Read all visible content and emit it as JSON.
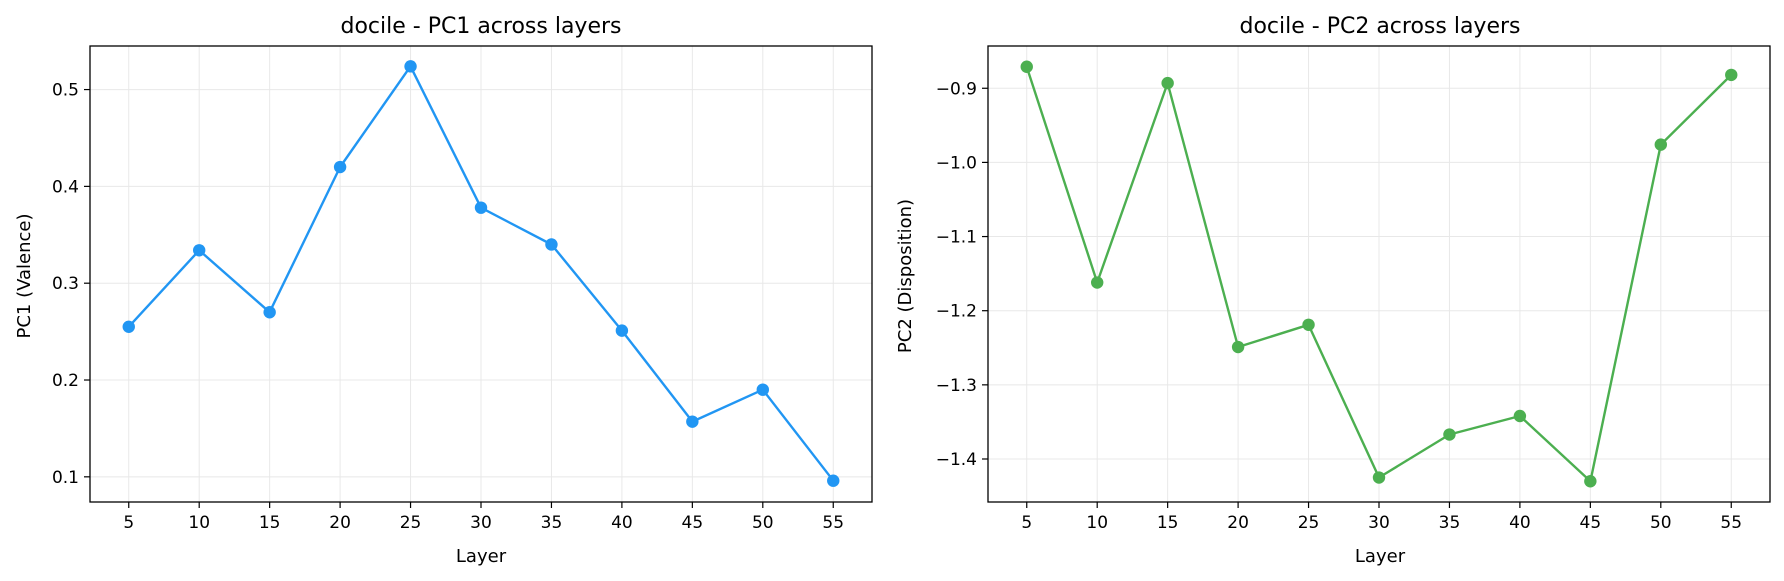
{
  "chart_data": [
    {
      "type": "line",
      "title": "docile - PC1 across layers",
      "xlabel": "Layer",
      "ylabel": "PC1 (Valence)",
      "x": [
        5,
        10,
        15,
        20,
        25,
        30,
        35,
        40,
        45,
        50,
        55
      ],
      "xticks": [
        "5",
        "10",
        "15",
        "20",
        "25",
        "30",
        "35",
        "40",
        "45",
        "50",
        "55"
      ],
      "xlim": [
        2.25,
        57.75
      ],
      "yticks": [
        "0.1",
        "0.2",
        "0.3",
        "0.4",
        "0.5"
      ],
      "ytick_values": [
        0.1,
        0.2,
        0.3,
        0.4,
        0.5
      ],
      "ylim": [
        0.074,
        0.545
      ],
      "grid": true,
      "series": [
        {
          "color": "#2196F3",
          "values": [
            0.255,
            0.334,
            0.27,
            0.42,
            0.524,
            0.378,
            0.34,
            0.251,
            0.157,
            0.19,
            0.096
          ]
        }
      ]
    },
    {
      "type": "line",
      "title": "docile - PC2 across layers",
      "xlabel": "Layer",
      "ylabel": "PC2 (Disposition)",
      "x": [
        5,
        10,
        15,
        20,
        25,
        30,
        35,
        40,
        45,
        50,
        55
      ],
      "xticks": [
        "5",
        "10",
        "15",
        "20",
        "25",
        "30",
        "35",
        "40",
        "45",
        "50",
        "55"
      ],
      "xlim": [
        2.25,
        57.75
      ],
      "yticks": [
        "−0.9",
        "−1.0",
        "−1.1",
        "−1.2",
        "−1.3",
        "−1.4"
      ],
      "ytick_values": [
        -0.9,
        -1.0,
        -1.1,
        -1.2,
        -1.3,
        -1.4
      ],
      "ylim": [
        -1.458,
        -0.843
      ],
      "grid": true,
      "series": [
        {
          "color": "#4CAF50",
          "values": [
            -0.871,
            -1.162,
            -0.893,
            -1.249,
            -1.219,
            -1.425,
            -1.367,
            -1.342,
            -1.43,
            -0.976,
            -0.882
          ]
        }
      ]
    }
  ]
}
